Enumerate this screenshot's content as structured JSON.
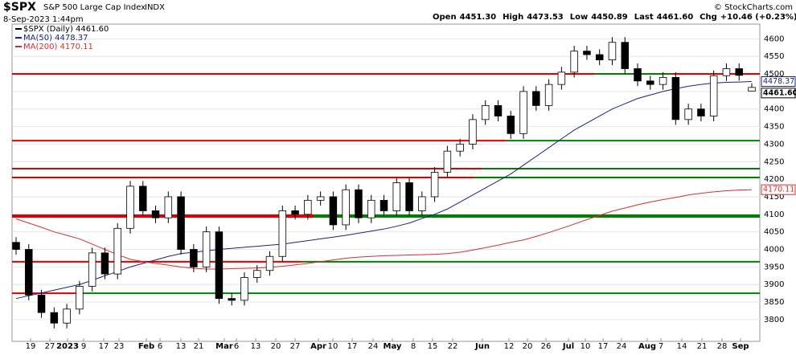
{
  "chart_data": {
    "type": "candlestick",
    "title": "$SPX",
    "subtitle": "S&P 500 Large Cap Index",
    "exchange": "INDX",
    "date": "8-Sep-2023 1:44pm",
    "credit": "© StockCharts.com",
    "quote": {
      "open_label": "Open",
      "open": "4451.30",
      "high_label": "High",
      "high": "4473.53",
      "low_label": "Low",
      "low": "4450.89",
      "last_label": "Last",
      "last": "4461.60",
      "chg_label": "Chg",
      "chg": "+10.46 (+0.23%)"
    },
    "legend": [
      "$SPX (Daily) 4461.60",
      "MA(50) 4478.37",
      "MA(200) 4170.11"
    ],
    "price_tags": [
      {
        "value": 4478.37,
        "label": "4478.37"
      },
      {
        "value": 4461.6,
        "label": "4461.60"
      },
      {
        "value": 4170.11,
        "label": "4170.11"
      }
    ],
    "x_labels": [
      "19",
      "27",
      "2023",
      "9",
      "17",
      "23",
      "Feb",
      "6",
      "13",
      "21",
      "Mar",
      "6",
      "13",
      "20",
      "27",
      "Apr",
      "10",
      "17",
      "24",
      "May",
      "8",
      "15",
      "22",
      "Jun",
      "12",
      "20",
      "26",
      "Jul",
      "10",
      "17",
      "24",
      "Aug",
      "7",
      "14",
      "21",
      "28",
      "Sep"
    ],
    "open": [
      4020,
      4000,
      3870,
      3820,
      3790,
      3830,
      3895,
      3990,
      3930,
      4060,
      4180,
      4110,
      4090,
      4150,
      4000,
      3950,
      4050,
      3860,
      3855,
      3920,
      3940,
      3980,
      4110,
      4100,
      4140,
      4150,
      4070,
      4170,
      4090,
      4140,
      4110,
      4190,
      4110,
      4150,
      4220,
      4280,
      4300,
      4370,
      4410,
      4380,
      4330,
      4450,
      4410,
      4470,
      4505,
      4565,
      4555,
      4540,
      4590,
      4515,
      4480,
      4470,
      4490,
      4370,
      4400,
      4380,
      4495,
      4515,
      4451.3
    ],
    "high": [
      4035,
      4015,
      3885,
      3835,
      3845,
      3910,
      4005,
      4005,
      4075,
      4195,
      4195,
      4125,
      4165,
      4165,
      4015,
      4065,
      4065,
      3875,
      3935,
      3955,
      3995,
      4125,
      4125,
      4155,
      4165,
      4165,
      4185,
      4185,
      4155,
      4155,
      4205,
      4205,
      4165,
      4235,
      4295,
      4315,
      4385,
      4425,
      4425,
      4395,
      4465,
      4465,
      4485,
      4520,
      4580,
      4580,
      4570,
      4605,
      4605,
      4530,
      4495,
      4505,
      4505,
      4415,
      4415,
      4510,
      4530,
      4530,
      4473.53
    ],
    "low": [
      3985,
      3855,
      3805,
      3775,
      3775,
      3815,
      3880,
      3915,
      3915,
      4045,
      4095,
      4075,
      4075,
      3985,
      3935,
      3935,
      3845,
      3840,
      3840,
      3905,
      3925,
      3965,
      4085,
      4085,
      4125,
      4055,
      4055,
      4075,
      4075,
      4095,
      4095,
      4095,
      4095,
      4135,
      4205,
      4265,
      4285,
      4355,
      4365,
      4315,
      4315,
      4395,
      4395,
      4455,
      4490,
      4540,
      4525,
      4525,
      4500,
      4465,
      4455,
      4455,
      4355,
      4355,
      4365,
      4365,
      4480,
      4481,
      4450.89
    ],
    "close": [
      4000,
      3870,
      3820,
      3790,
      3830,
      3895,
      3990,
      3930,
      4060,
      4180,
      4110,
      4090,
      4150,
      4000,
      3950,
      4050,
      3860,
      3855,
      3920,
      3940,
      3980,
      4110,
      4100,
      4140,
      4150,
      4070,
      4170,
      4090,
      4140,
      4110,
      4190,
      4110,
      4150,
      4220,
      4280,
      4300,
      4370,
      4410,
      4380,
      4330,
      4450,
      4410,
      4470,
      4505,
      4565,
      4555,
      4540,
      4590,
      4515,
      4480,
      4470,
      4490,
      4370,
      4400,
      4380,
      4495,
      4515,
      4496,
      4461.6
    ],
    "series": [
      {
        "name": "MA(50)",
        "color": "#1a237e",
        "values": [
          3860,
          3868,
          3876,
          3884,
          3892,
          3900,
          3912,
          3925,
          3937,
          3950,
          3960,
          3970,
          3980,
          3988,
          3992,
          3996,
          4000,
          4003,
          4006,
          4009,
          4012,
          4015,
          4020,
          4025,
          4030,
          4035,
          4040,
          4046,
          4052,
          4058,
          4066,
          4075,
          4088,
          4100,
          4115,
          4135,
          4155,
          4175,
          4195,
          4215,
          4240,
          4265,
          4290,
          4315,
          4340,
          4360,
          4380,
          4400,
          4415,
          4430,
          4440,
          4450,
          4458,
          4465,
          4470,
          4474,
          4476,
          4477,
          4478.37
        ]
      },
      {
        "name": "MA(200)",
        "color": "#d32f2f",
        "values": [
          4087,
          4075,
          4063,
          4050,
          4040,
          4030,
          4015,
          4000,
          3985,
          3972,
          3965,
          3960,
          3955,
          3950,
          3946,
          3944,
          3944,
          3945,
          3946,
          3947,
          3949,
          3952,
          3956,
          3960,
          3965,
          3970,
          3975,
          3978,
          3980,
          3982,
          3983,
          3984,
          3985,
          3986,
          3988,
          3992,
          3998,
          4005,
          4012,
          4020,
          4027,
          4037,
          4048,
          4060,
          4072,
          4085,
          4097,
          4109,
          4118,
          4127,
          4135,
          4142,
          4148,
          4155,
          4160,
          4164,
          4167,
          4169,
          4170.11
        ]
      }
    ],
    "levels": [
      4500,
      4310,
      4230,
      4205,
      4095,
      3965,
      3875
    ],
    "level_colors": [
      "#e00000",
      "#008000"
    ],
    "ylim": [
      3738,
      4642
    ],
    "yticks": [
      3800,
      3850,
      3900,
      3950,
      4000,
      4050,
      4100,
      4150,
      4200,
      4250,
      4300,
      4350,
      4400,
      4450,
      4500,
      4550,
      4600
    ],
    "grid": true
  }
}
